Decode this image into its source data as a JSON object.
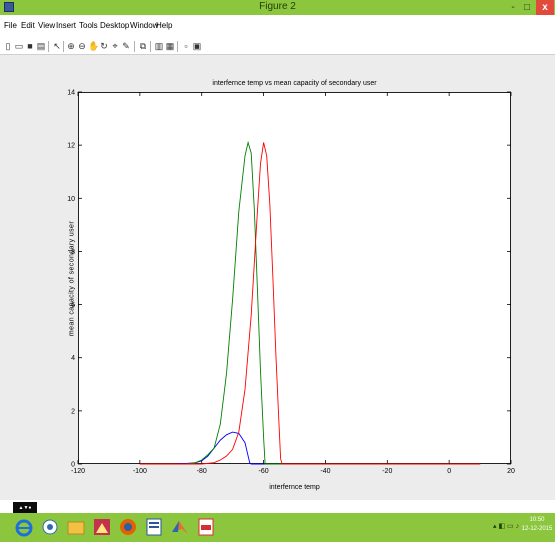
{
  "window": {
    "title": "Figure 2",
    "min_label": "-",
    "max_label": "□",
    "close_label": "x"
  },
  "menu": {
    "items": [
      "File",
      "Edit",
      "View",
      "Insert",
      "Tools",
      "Desktop",
      "Window",
      "Help"
    ]
  },
  "toolbar": {
    "icons": [
      "new-figure-icon",
      "open-file-icon",
      "save-icon",
      "print-icon",
      "edit-plot-arrow-icon",
      "zoom-in-icon",
      "zoom-out-icon",
      "pan-icon",
      "rotate-icon",
      "data-cursor-icon",
      "brush-icon",
      "link-icon",
      "colorbar-icon",
      "legend-icon",
      "hide-plot-tools-icon",
      "show-plot-tools-icon"
    ]
  },
  "chart_data": {
    "type": "line",
    "title": "interfernce temp vs mean capacity of secondary user",
    "xlabel": "interfernce temp",
    "ylabel": "mean capacity of secondary user",
    "xlim": [
      -120,
      20
    ],
    "ylim": [
      0,
      14
    ],
    "x_ticks": [
      -120,
      -100,
      -80,
      -60,
      -40,
      -20,
      0,
      20
    ],
    "y_ticks": [
      0,
      2,
      4,
      6,
      8,
      10,
      12,
      14
    ],
    "x_tick_labels": [
      "-120",
      "-100",
      "-80",
      "-60",
      "-40",
      "-20",
      "0",
      "20"
    ],
    "y_tick_labels": [
      "0",
      "2",
      "4",
      "6",
      "8",
      "10",
      "12",
      "14"
    ],
    "grid": false,
    "series": [
      {
        "color": "#0000ff",
        "x": [
          -100,
          -90,
          -85,
          -82,
          -80,
          -78,
          -76,
          -74,
          -72,
          -70,
          -68,
          -66,
          -65,
          -64.5,
          -64,
          -60,
          -40,
          -20,
          0,
          10
        ],
        "y": [
          0,
          0,
          0.02,
          0.05,
          0.12,
          0.3,
          0.6,
          0.9,
          1.1,
          1.2,
          1.15,
          0.8,
          0.3,
          0.05,
          0,
          0,
          0,
          0,
          0,
          0
        ]
      },
      {
        "color": "#008000",
        "x": [
          -100,
          -85,
          -82,
          -80,
          -78,
          -76,
          -74,
          -72,
          -70,
          -68,
          -66,
          -65,
          -64,
          -63,
          -62,
          -61,
          -60,
          -59.5,
          -40,
          -20,
          0,
          10
        ],
        "y": [
          0,
          0,
          0.05,
          0.15,
          0.35,
          0.6,
          1.5,
          3.4,
          6.2,
          9.5,
          11.6,
          12.1,
          11.7,
          9.6,
          6.6,
          3.5,
          1.0,
          0,
          0,
          0,
          0,
          0
        ]
      },
      {
        "color": "#ff0000",
        "x": [
          -100,
          -80,
          -76,
          -74,
          -72,
          -70,
          -68,
          -66,
          -64,
          -62,
          -61,
          -60,
          -59,
          -58,
          -57,
          -56,
          -55,
          -54.5,
          -54,
          -40,
          -20,
          0,
          10
        ],
        "y": [
          0,
          0,
          0.05,
          0.15,
          0.3,
          0.55,
          1.2,
          2.8,
          5.6,
          9.5,
          11.3,
          12.1,
          11.6,
          9.8,
          7.0,
          4.1,
          1.5,
          0.2,
          0,
          0,
          0,
          0,
          0
        ]
      }
    ]
  },
  "taskbar": {
    "apps": [
      "ie-icon",
      "windows-explorer-icon",
      "file-explorer-icon",
      "photo-app-icon",
      "firefox-icon",
      "word-doc-icon",
      "matlab-icon",
      "pdf-icon"
    ],
    "tray_text": "▴ ◧ ▭ ♪",
    "clock_time": "10:50",
    "clock_date": "12-12-2015"
  }
}
